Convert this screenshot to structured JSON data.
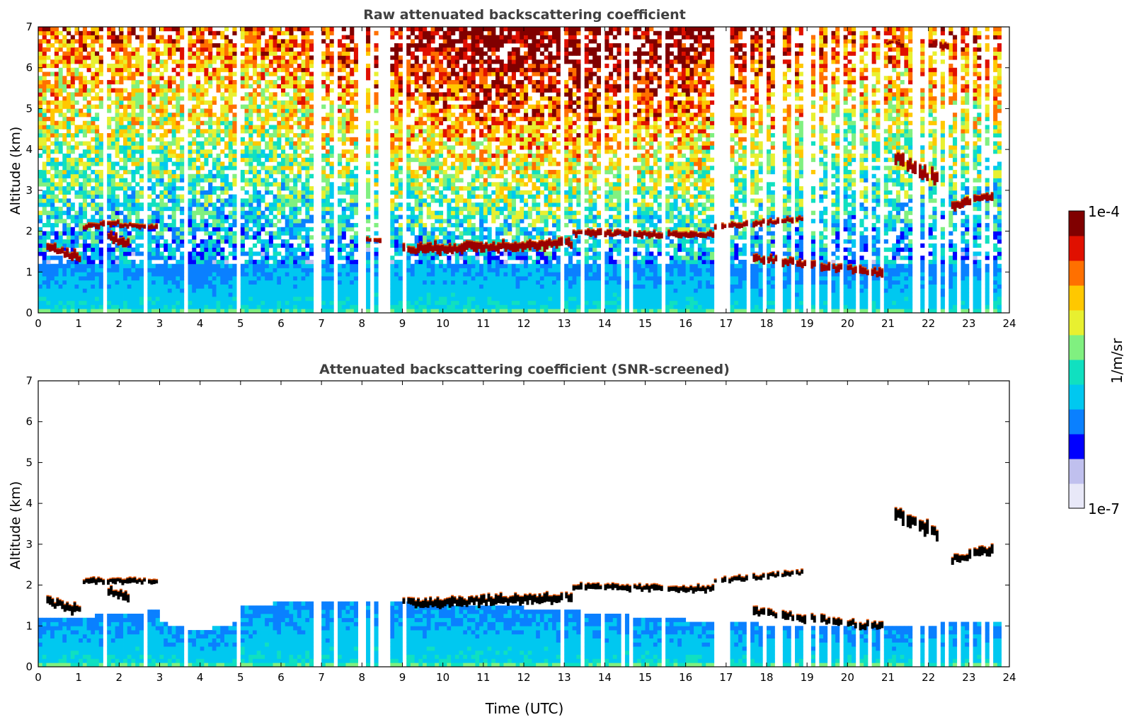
{
  "chart_data": [
    {
      "type": "heatmap",
      "title": "Raw attenuated backscattering coefficient",
      "xlabel": "",
      "ylabel": "Altitude (km)",
      "xlim": [
        0,
        24
      ],
      "ylim": [
        0,
        7
      ],
      "xticks": [
        "0",
        "1",
        "2",
        "3",
        "4",
        "5",
        "6",
        "7",
        "8",
        "9",
        "10",
        "11",
        "12",
        "13",
        "14",
        "15",
        "16",
        "17",
        "18",
        "19",
        "20",
        "21",
        "22",
        "23",
        "24"
      ],
      "yticks": [
        "0",
        "1",
        "2",
        "3",
        "4",
        "5",
        "6",
        "7"
      ],
      "noise": "high",
      "features": [
        {
          "kind": "layer",
          "t": [
            0.2,
            1.05
          ],
          "alt": [
            1.6,
            1.35
          ],
          "thickness": 0.2,
          "level": "high"
        },
        {
          "kind": "layer",
          "t": [
            1.1,
            2.0
          ],
          "alt": [
            2.1,
            2.2
          ],
          "thickness": 0.12,
          "level": "high"
        },
        {
          "kind": "layer",
          "t": [
            2.0,
            2.95
          ],
          "alt": [
            2.15,
            2.1
          ],
          "thickness": 0.1,
          "level": "high"
        },
        {
          "kind": "layer",
          "t": [
            1.65,
            2.25
          ],
          "alt": [
            1.9,
            1.65
          ],
          "thickness": 0.2,
          "level": "high"
        },
        {
          "kind": "layer",
          "t": [
            8.1,
            8.6
          ],
          "alt": [
            1.78,
            1.78
          ],
          "thickness": 0.1,
          "level": "high"
        },
        {
          "kind": "layer",
          "t": [
            9.0,
            13.2
          ],
          "alt": [
            1.55,
            1.7
          ],
          "thickness": 0.22,
          "level": "high"
        },
        {
          "kind": "layer",
          "t": [
            13.2,
            16.7
          ],
          "alt": [
            1.95,
            1.9
          ],
          "thickness": 0.14,
          "level": "high"
        },
        {
          "kind": "layer",
          "t": [
            16.7,
            18.9
          ],
          "alt": [
            2.1,
            2.3
          ],
          "thickness": 0.12,
          "level": "high"
        },
        {
          "kind": "layer",
          "t": [
            17.6,
            21.0
          ],
          "alt": [
            1.35,
            0.95
          ],
          "thickness": 0.18,
          "level": "high"
        },
        {
          "kind": "layer",
          "t": [
            21.1,
            22.3
          ],
          "alt": [
            3.8,
            3.2
          ],
          "thickness": 0.3,
          "level": "high"
        },
        {
          "kind": "layer",
          "t": [
            22.5,
            23.6
          ],
          "alt": [
            2.6,
            2.9
          ],
          "thickness": 0.2,
          "level": "high"
        },
        {
          "kind": "layer",
          "t": [
            20.9,
            21.3
          ],
          "alt": [
            6.6,
            6.6
          ],
          "thickness": 0.1,
          "level": "high"
        },
        {
          "kind": "layer",
          "t": [
            22.1,
            22.5
          ],
          "alt": [
            6.6,
            6.5
          ],
          "thickness": 0.15,
          "level": "high"
        }
      ]
    },
    {
      "type": "heatmap",
      "title": "Attenuated backscattering coefficient (SNR-screened)",
      "xlabel": "Time (UTC)",
      "ylabel": "Altitude (km)",
      "xlim": [
        0,
        24
      ],
      "ylim": [
        0,
        7
      ],
      "xticks": [
        "0",
        "1",
        "2",
        "3",
        "4",
        "5",
        "6",
        "7",
        "8",
        "9",
        "10",
        "11",
        "12",
        "13",
        "14",
        "15",
        "16",
        "17",
        "18",
        "19",
        "20",
        "21",
        "22",
        "23",
        "24"
      ],
      "yticks": [
        "0",
        "1",
        "2",
        "3",
        "4",
        "5",
        "6",
        "7"
      ],
      "noise": "screened",
      "features": [
        {
          "kind": "layer",
          "t": [
            0.2,
            1.05
          ],
          "alt": [
            1.6,
            1.35
          ],
          "thickness": 0.2,
          "level": "high"
        },
        {
          "kind": "layer",
          "t": [
            1.1,
            2.95
          ],
          "alt": [
            2.1,
            2.1
          ],
          "thickness": 0.12,
          "level": "high"
        },
        {
          "kind": "layer",
          "t": [
            1.65,
            2.25
          ],
          "alt": [
            1.9,
            1.65
          ],
          "thickness": 0.2,
          "level": "high"
        },
        {
          "kind": "layer",
          "t": [
            9.0,
            13.2
          ],
          "alt": [
            1.55,
            1.7
          ],
          "thickness": 0.22,
          "level": "high"
        },
        {
          "kind": "layer",
          "t": [
            13.2,
            16.7
          ],
          "alt": [
            1.95,
            1.9
          ],
          "thickness": 0.14,
          "level": "high"
        },
        {
          "kind": "layer",
          "t": [
            16.7,
            18.9
          ],
          "alt": [
            2.1,
            2.3
          ],
          "thickness": 0.12,
          "level": "high"
        },
        {
          "kind": "layer",
          "t": [
            17.6,
            21.0
          ],
          "alt": [
            1.35,
            0.95
          ],
          "thickness": 0.18,
          "level": "high"
        },
        {
          "kind": "layer",
          "t": [
            21.1,
            22.3
          ],
          "alt": [
            3.8,
            3.2
          ],
          "thickness": 0.3,
          "level": "high"
        },
        {
          "kind": "layer",
          "t": [
            22.5,
            23.6
          ],
          "alt": [
            2.6,
            2.9
          ],
          "thickness": 0.2,
          "level": "high"
        }
      ]
    }
  ],
  "colorbar": {
    "label": "1/m/sr",
    "max_label": "1e-4",
    "min_label": "1e-7",
    "scale": "log",
    "colors": [
      "#e8e8f8",
      "#c0c0ee",
      "#0000ff",
      "#0a80ff",
      "#00c8f0",
      "#10e0c0",
      "#80f080",
      "#e8f030",
      "#ffc800",
      "#ff7000",
      "#e01000",
      "#800000"
    ]
  },
  "data_gaps_utc": [
    [
      1.63,
      1.67
    ],
    [
      2.62,
      2.66
    ],
    [
      3.62,
      3.66
    ],
    [
      3.78,
      3.82
    ],
    [
      4.93,
      5.02
    ],
    [
      5.08,
      5.1
    ],
    [
      5.3,
      5.33
    ],
    [
      6.85,
      6.98
    ],
    [
      7.18,
      7.24
    ],
    [
      7.35,
      7.42
    ],
    [
      7.93,
      8.05
    ],
    [
      8.22,
      8.25
    ],
    [
      8.45,
      8.55
    ],
    [
      8.62,
      8.72
    ],
    [
      9.02,
      9.06
    ],
    [
      12.93,
      12.97
    ],
    [
      13.42,
      13.46
    ],
    [
      13.92,
      13.96
    ],
    [
      14.42,
      14.46
    ],
    [
      14.62,
      14.66
    ],
    [
      15.42,
      15.5
    ],
    [
      16.75,
      16.85
    ],
    [
      16.95,
      17.05
    ],
    [
      17.5,
      17.6
    ],
    [
      17.9,
      18.0
    ],
    [
      18.25,
      18.35
    ],
    [
      18.65,
      18.7
    ],
    [
      18.95,
      19.05
    ],
    [
      19.2,
      19.3
    ],
    [
      19.55,
      19.62
    ],
    [
      19.85,
      19.95
    ],
    [
      20.2,
      20.25
    ],
    [
      20.5,
      20.55
    ],
    [
      20.85,
      20.95
    ],
    [
      21.1,
      21.15
    ],
    [
      21.4,
      21.45
    ],
    [
      21.65,
      21.75
    ],
    [
      21.95,
      22.0
    ],
    [
      22.2,
      22.25
    ],
    [
      22.45,
      22.5
    ],
    [
      22.75,
      22.8
    ],
    [
      23.0,
      23.05
    ],
    [
      23.3,
      23.35
    ],
    [
      23.55,
      23.6
    ],
    [
      23.78,
      24.0
    ]
  ]
}
